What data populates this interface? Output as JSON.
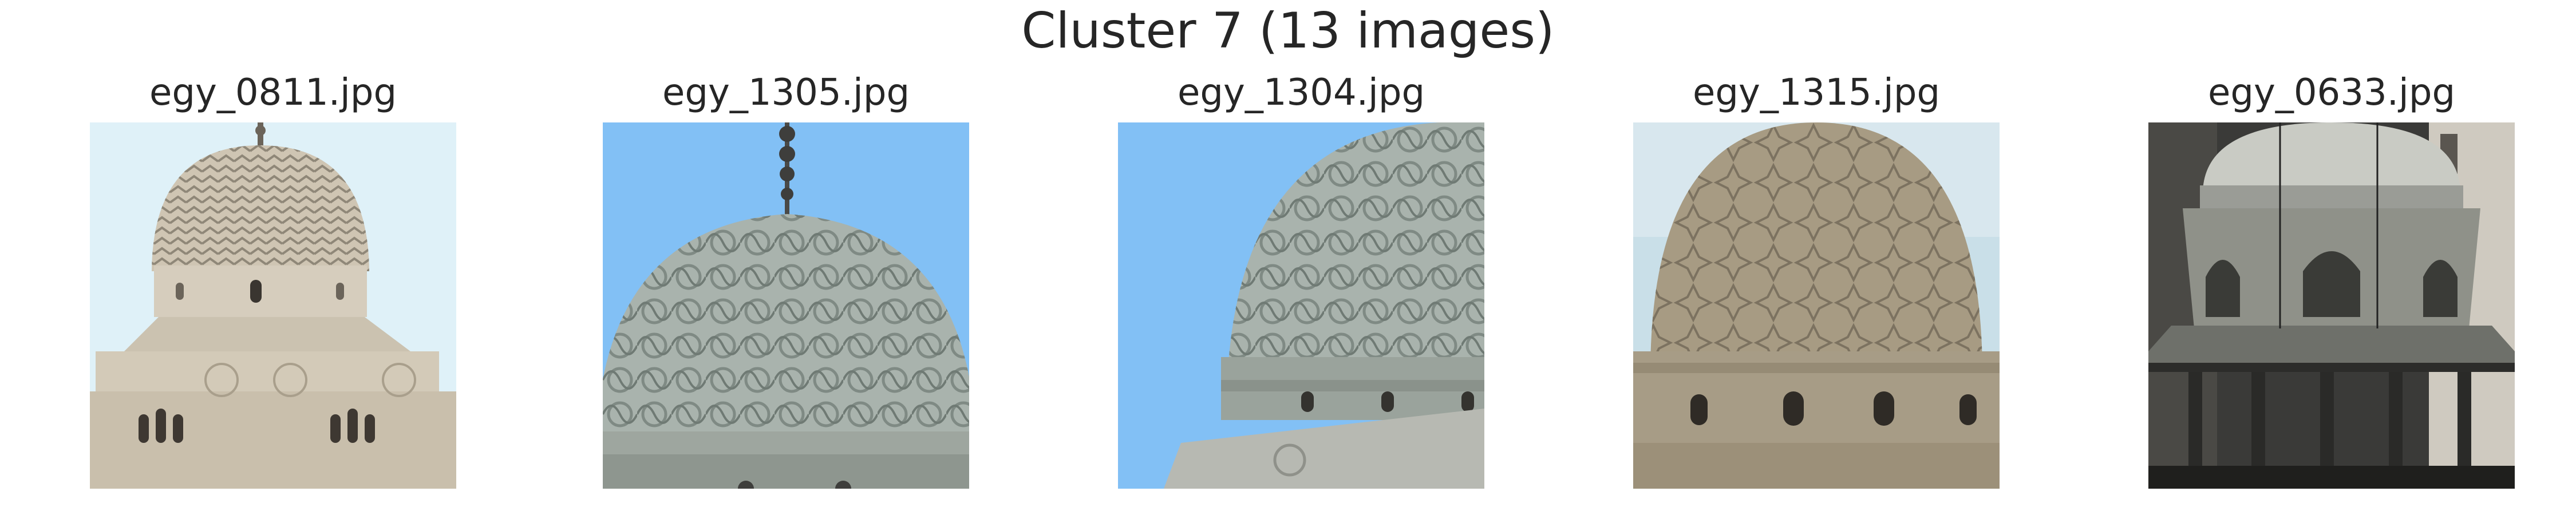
{
  "figure": {
    "title": "Cluster 7 (13 images)"
  },
  "images": [
    {
      "filename": "egy_0811.jpg",
      "icon": "dome-minaret-photo"
    },
    {
      "filename": "egy_1305.jpg",
      "icon": "carved-dome-photo"
    },
    {
      "filename": "egy_1304.jpg",
      "icon": "carved-dome-photo"
    },
    {
      "filename": "egy_1315.jpg",
      "icon": "star-pattern-dome-photo"
    },
    {
      "filename": "egy_0633.jpg",
      "icon": "sabil-pavilion-photo"
    }
  ],
  "colors": {
    "sky_pale": "#dff1f8",
    "sky_blue": "#82c0f5",
    "stone_light": "#d9d2c4",
    "stone_grey": "#a9b0a8",
    "stone_tan": "#a49880",
    "dark": "#2b2b2b"
  }
}
